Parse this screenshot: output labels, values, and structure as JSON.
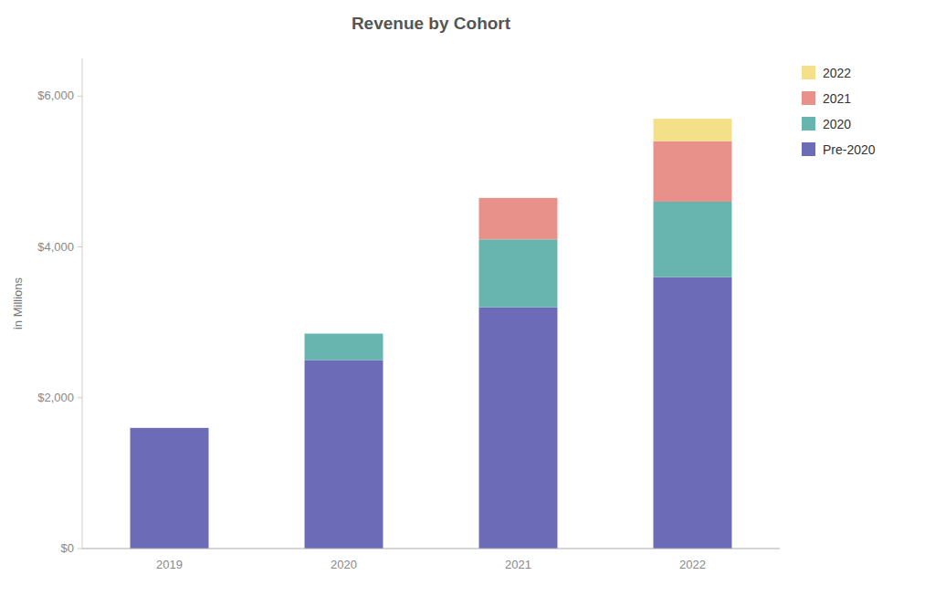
{
  "chart_data": {
    "type": "bar",
    "stacked": true,
    "title": "Revenue by Cohort",
    "ylabel": "in Millions",
    "categories": [
      "2019",
      "2020",
      "2021",
      "2022"
    ],
    "series": [
      {
        "name": "Pre-2020",
        "color": "#6B6BB8",
        "values": [
          1600,
          2500,
          3200,
          3600
        ]
      },
      {
        "name": "2020",
        "color": "#68B5AF",
        "values": [
          0,
          350,
          900,
          1000
        ]
      },
      {
        "name": "2021",
        "color": "#E8908A",
        "values": [
          0,
          0,
          550,
          800
        ]
      },
      {
        "name": "2022",
        "color": "#F5E08A",
        "values": [
          0,
          0,
          0,
          300
        ]
      }
    ],
    "ylim": [
      0,
      6500
    ],
    "yticks": [
      {
        "value": 0,
        "label": "$0"
      },
      {
        "value": 2000,
        "label": "$2,000"
      },
      {
        "value": 4000,
        "label": "$4,000"
      },
      {
        "value": 6000,
        "label": "$6,000"
      }
    ],
    "grid": false,
    "legend": "right"
  }
}
